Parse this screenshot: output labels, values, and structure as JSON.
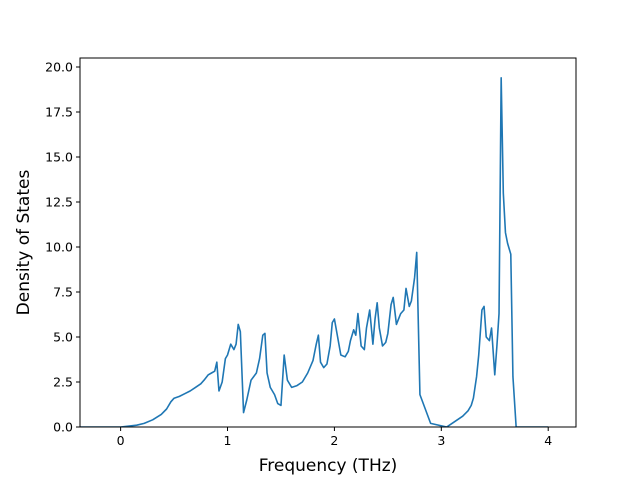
{
  "chart_data": {
    "type": "line",
    "title": "",
    "xlabel": "Frequency (THz)",
    "ylabel": "Density of States",
    "xlim": [
      -0.38,
      4.26
    ],
    "ylim": [
      0,
      20.5
    ],
    "xticks": [
      0,
      1,
      2,
      3,
      4
    ],
    "xtick_labels": [
      "0",
      "1",
      "2",
      "3",
      "4"
    ],
    "yticks": [
      0,
      2.5,
      5,
      7.5,
      10,
      12.5,
      15,
      17.5,
      20
    ],
    "ytick_labels": [
      "0.0",
      "2.5",
      "5.0",
      "7.5",
      "10.0",
      "12.5",
      "15.0",
      "17.5",
      "20.0"
    ],
    "grid": false,
    "legend": false,
    "colors": {
      "line": "#1f77b4",
      "axes": "#000000"
    },
    "series": [
      {
        "x": [
          -0.38,
          -0.2,
          0.0,
          0.15,
          0.22,
          0.3,
          0.38,
          0.43,
          0.47,
          0.5,
          0.55,
          0.6,
          0.65,
          0.7,
          0.75,
          0.78,
          0.82,
          0.85,
          0.88,
          0.9,
          0.92,
          0.95,
          0.98,
          1.0,
          1.03,
          1.06,
          1.08,
          1.1,
          1.12,
          1.15,
          1.18,
          1.22,
          1.27,
          1.3,
          1.33,
          1.35,
          1.37,
          1.4,
          1.44,
          1.47,
          1.5,
          1.53,
          1.56,
          1.6,
          1.65,
          1.7,
          1.75,
          1.8,
          1.83,
          1.85,
          1.87,
          1.9,
          1.93,
          1.96,
          1.98,
          2.0,
          2.03,
          2.06,
          2.1,
          2.13,
          2.15,
          2.18,
          2.2,
          2.22,
          2.25,
          2.28,
          2.3,
          2.33,
          2.36,
          2.38,
          2.4,
          2.42,
          2.45,
          2.48,
          2.5,
          2.53,
          2.55,
          2.58,
          2.62,
          2.65,
          2.67,
          2.7,
          2.72,
          2.75,
          2.77,
          2.8,
          2.85,
          2.9,
          3.05,
          3.1,
          3.2,
          3.25,
          3.28,
          3.3,
          3.33,
          3.35,
          3.38,
          3.4,
          3.42,
          3.45,
          3.47,
          3.5,
          3.52,
          3.54,
          3.56,
          3.58,
          3.6,
          3.62,
          3.65,
          3.67,
          3.7,
          4.0
        ],
        "y": [
          0.0,
          0.0,
          0.0,
          0.1,
          0.2,
          0.4,
          0.7,
          1.0,
          1.4,
          1.6,
          1.7,
          1.85,
          2.0,
          2.2,
          2.4,
          2.6,
          2.9,
          3.0,
          3.1,
          3.6,
          2.0,
          2.5,
          3.8,
          4.0,
          4.6,
          4.3,
          4.6,
          5.7,
          5.3,
          0.8,
          1.5,
          2.6,
          3.0,
          3.8,
          5.1,
          5.2,
          3.0,
          2.2,
          1.8,
          1.3,
          1.2,
          4.0,
          2.6,
          2.2,
          2.3,
          2.5,
          3.0,
          3.7,
          4.6,
          5.1,
          3.6,
          3.3,
          3.5,
          4.5,
          5.8,
          6.0,
          5.0,
          4.0,
          3.9,
          4.2,
          4.8,
          5.4,
          5.1,
          6.3,
          4.5,
          4.3,
          5.5,
          6.5,
          4.6,
          6.0,
          6.9,
          5.5,
          4.5,
          4.7,
          5.2,
          6.8,
          7.2,
          5.7,
          6.3,
          6.5,
          7.7,
          6.7,
          7.0,
          8.3,
          9.7,
          1.8,
          1.0,
          0.2,
          0.0,
          0.2,
          0.6,
          0.9,
          1.2,
          1.6,
          2.8,
          4.0,
          6.5,
          6.7,
          5.0,
          4.8,
          5.5,
          2.9,
          4.5,
          6.3,
          19.4,
          13.0,
          10.8,
          10.2,
          9.6,
          2.8,
          0.0,
          0.0
        ]
      }
    ]
  }
}
